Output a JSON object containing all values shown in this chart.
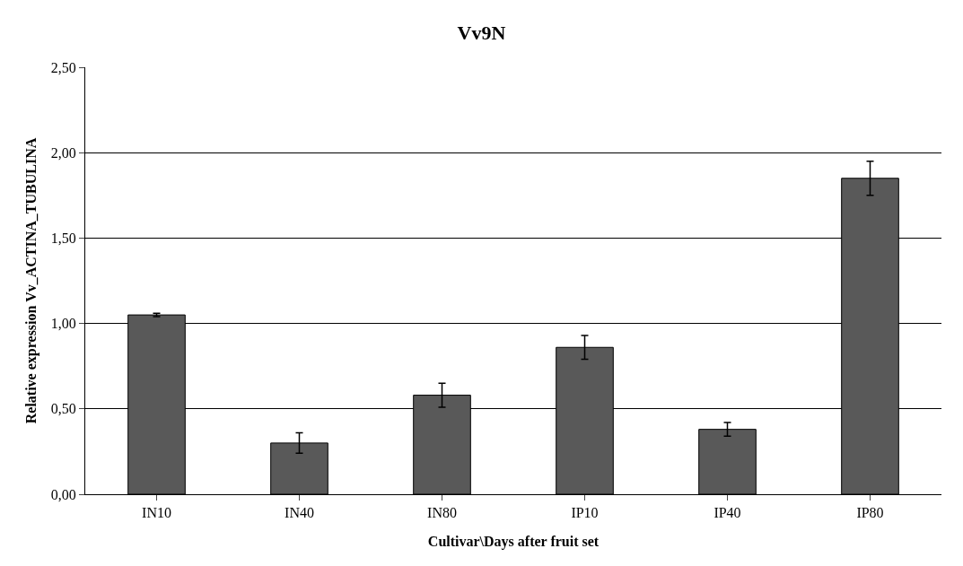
{
  "chart_data": {
    "type": "bar",
    "title": "Vv9N",
    "xlabel": "Cultivar\\Days after fruit set",
    "ylabel": "Relative expression Vv_ACTINA_TUBULINA",
    "categories": [
      "IN10",
      "IN40",
      "IN80",
      "IP10",
      "IP40",
      "IP80"
    ],
    "values": [
      1.05,
      0.3,
      0.58,
      0.86,
      0.38,
      1.85
    ],
    "errors": [
      0.01,
      0.06,
      0.07,
      0.07,
      0.04,
      0.1
    ],
    "color": "#595959",
    "ylim": [
      0,
      2.5
    ],
    "yticks": [
      {
        "value": 0,
        "label": "0,00"
      },
      {
        "value": 0.5,
        "label": "0,50"
      },
      {
        "value": 1,
        "label": "1,00"
      },
      {
        "value": 1.5,
        "label": "1,50"
      },
      {
        "value": 2,
        "label": "2,00"
      },
      {
        "value": 2.5,
        "label": "2,50"
      }
    ],
    "grid": "y",
    "legend": false
  }
}
